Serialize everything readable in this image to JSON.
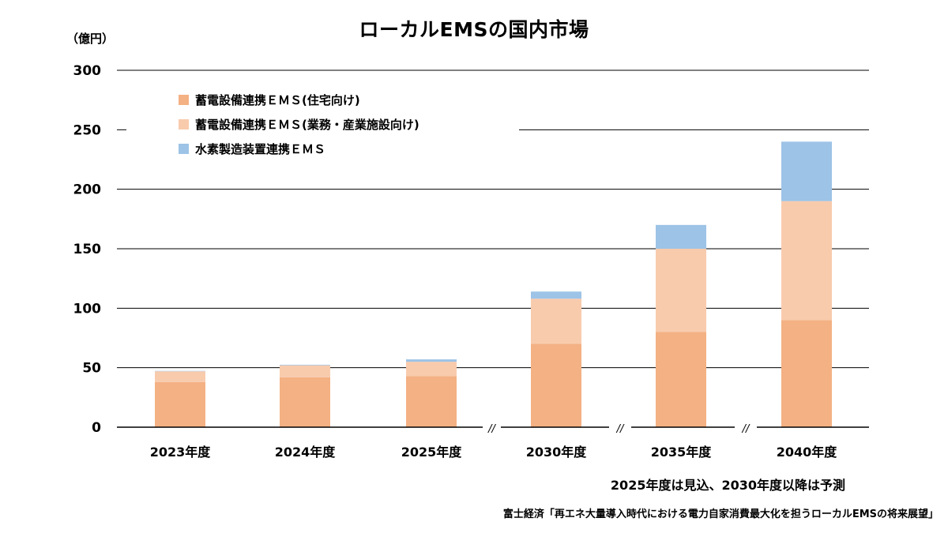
{
  "title": "ローカルEMSの国内市場",
  "unit_label": "（億円）",
  "note_forecast": "2025年度は見込、2030年度以降は予測",
  "source": "富士経済「再エネ大量導入時代における電力自家消費最大化を担うローカルEMSの将来展望」",
  "break_mark": "//",
  "colors": {
    "residential": "#F4B183",
    "commercial": "#F8CBAD",
    "hydrogen": "#9DC3E6",
    "grid": "#000000"
  },
  "chart_data": {
    "type": "bar",
    "stacked": true,
    "title": "ローカルEMSの国内市場",
    "ylabel": "（億円）",
    "xlabel": "",
    "ylim": [
      0,
      300
    ],
    "yticks": [
      0,
      50,
      100,
      150,
      200,
      250,
      300
    ],
    "grid": true,
    "legend_position": "top-left",
    "categories": [
      "2023年度",
      "2024年度",
      "2025年度",
      "2030年度",
      "2035年度",
      "2040年度"
    ],
    "axis_breaks_after": [
      "2025年度",
      "2030年度",
      "2035年度"
    ],
    "series": [
      {
        "name": "蓄電設備連携ＥＭＳ(住宅向け)",
        "color": "#F4B183",
        "values": [
          38,
          42,
          43,
          70,
          80,
          90
        ]
      },
      {
        "name": "蓄電設備連携ＥＭＳ(業務・産業施設向け)",
        "color": "#F8CBAD",
        "values": [
          9,
          10,
          12,
          38,
          70,
          100
        ]
      },
      {
        "name": "水素製造装置連携ＥＭＳ",
        "color": "#9DC3E6",
        "values": [
          0.3,
          0.5,
          2,
          6,
          20,
          50
        ]
      }
    ]
  }
}
